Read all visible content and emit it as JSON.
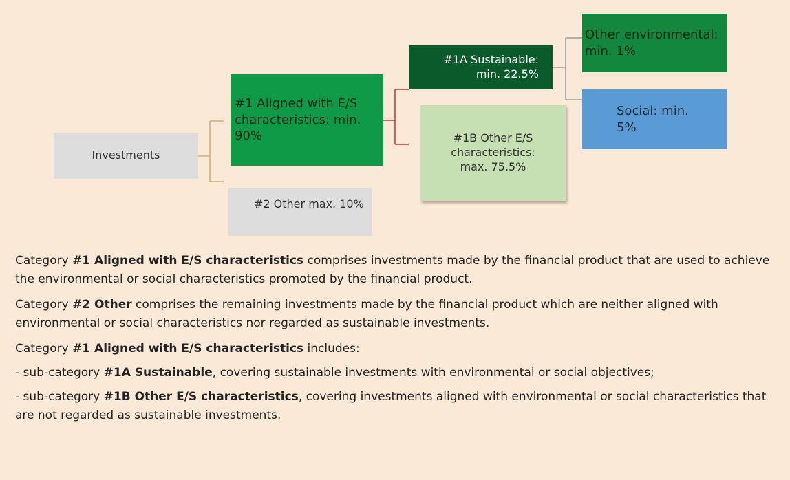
{
  "nodes": [
    {
      "label": "Investments"
    },
    {
      "label": "#1 Aligned with E/S characteristics: min. 90%"
    },
    {
      "label": "#2 Other max. 10%"
    },
    {
      "label": "#1A Sustainable: min. 22.5%"
    },
    {
      "label": "#1B Other E/S characteristics: max. 75.5%"
    },
    {
      "label": "Other environmental: min. 1%"
    },
    {
      "label": "Social: min. 5%"
    }
  ],
  "paragraphs": [
    {
      "runs": [
        {
          "text": "Category "
        },
        {
          "text": "#1 Aligned with E/S characteristics",
          "bold": true
        },
        {
          "text": " comprises investments made by the financial product that are used to achieve the environmental or social characteristics promoted by the financial product."
        }
      ]
    },
    {
      "runs": [
        {
          "text": "Category "
        },
        {
          "text": "#2 Other",
          "bold": true
        },
        {
          "text": " comprises the remaining investments made by the financial product which are neither aligned with environmental or social characteristics nor regarded as sustainable investments."
        }
      ]
    },
    {
      "runs": [
        {
          "text": "Category "
        },
        {
          "text": "#1 Aligned with E/S characteristics",
          "bold": true
        },
        {
          "text": " includes:"
        }
      ]
    },
    {
      "runs": [
        {
          "text": "-  sub-category "
        },
        {
          "text": "#1A Sustainable",
          "bold": true
        },
        {
          "text": ", covering sustainable investments with environmental or social objectives;"
        }
      ]
    },
    {
      "runs": [
        {
          "text": "- sub-category "
        },
        {
          "text": "#1B Other E/S characteristics",
          "bold": true
        },
        {
          "text": ", covering investments aligned with environmental or social characteristics that are not regarded as sustainable investments."
        }
      ]
    }
  ]
}
